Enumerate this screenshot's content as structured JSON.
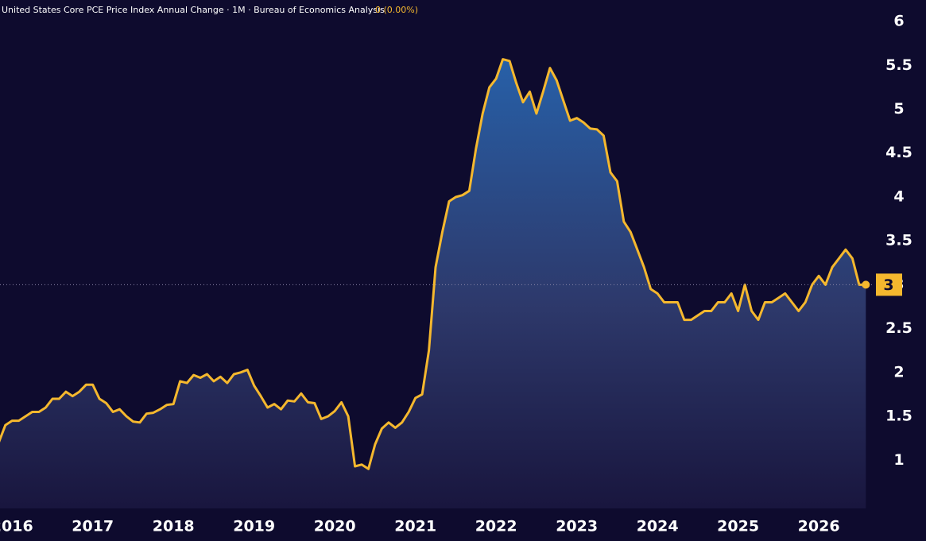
{
  "chart_data": {
    "type": "area",
    "title": "United States Core PCE Price Index Annual Change · 1M · Bureau of Economics Analysis",
    "change_label": "0 (0.00%)",
    "x": [
      2015.833,
      2015.917,
      2016,
      2016.083,
      2016.167,
      2016.25,
      2016.333,
      2016.417,
      2016.5,
      2016.583,
      2016.667,
      2016.75,
      2016.833,
      2016.917,
      2017,
      2017.083,
      2017.167,
      2017.25,
      2017.333,
      2017.417,
      2017.5,
      2017.583,
      2017.667,
      2017.75,
      2017.833,
      2017.917,
      2018,
      2018.083,
      2018.167,
      2018.25,
      2018.333,
      2018.417,
      2018.5,
      2018.583,
      2018.667,
      2018.75,
      2018.833,
      2018.917,
      2019,
      2019.083,
      2019.167,
      2019.25,
      2019.333,
      2019.417,
      2019.5,
      2019.583,
      2019.667,
      2019.75,
      2019.833,
      2019.917,
      2020,
      2020.083,
      2020.167,
      2020.25,
      2020.333,
      2020.417,
      2020.5,
      2020.583,
      2020.667,
      2020.75,
      2020.833,
      2020.917,
      2021,
      2021.083,
      2021.167,
      2021.25,
      2021.333,
      2021.417,
      2021.5,
      2021.583,
      2021.667,
      2021.75,
      2021.833,
      2021.917,
      2022,
      2022.083,
      2022.167,
      2022.25,
      2022.333,
      2022.417,
      2022.5,
      2022.583,
      2022.667,
      2022.75,
      2022.833,
      2022.917,
      2023,
      2023.083,
      2023.167,
      2023.25,
      2023.333,
      2023.417,
      2023.5,
      2023.583,
      2023.667,
      2023.75,
      2023.833,
      2023.917,
      2024,
      2024.083,
      2024.167,
      2024.25,
      2024.333,
      2024.417,
      2024.5,
      2024.583,
      2024.667,
      2024.75,
      2024.833,
      2024.917,
      2025,
      2025.083,
      2025.167,
      2025.25,
      2025.333,
      2025.417,
      2025.5,
      2025.583,
      2025.667,
      2025.75,
      2025.833,
      2025.917,
      2026,
      2026.083,
      2026.167,
      2026.25,
      2026.333,
      2026.417,
      2026.5,
      2026.583
    ],
    "series": [
      {
        "name": "United States Core PCE Price Index Annual Change",
        "color": "#f5b82e",
        "values": [
          1.2,
          1.4,
          1.45,
          1.45,
          1.5,
          1.55,
          1.55,
          1.6,
          1.7,
          1.7,
          1.78,
          1.73,
          1.78,
          1.86,
          1.86,
          1.7,
          1.65,
          1.55,
          1.58,
          1.5,
          1.44,
          1.43,
          1.53,
          1.54,
          1.58,
          1.63,
          1.64,
          1.9,
          1.88,
          1.97,
          1.94,
          1.98,
          1.9,
          1.95,
          1.88,
          1.98,
          2.0,
          2.03,
          1.85,
          1.73,
          1.6,
          1.64,
          1.58,
          1.68,
          1.67,
          1.76,
          1.66,
          1.65,
          1.47,
          1.5,
          1.56,
          1.66,
          1.5,
          0.93,
          0.95,
          0.9,
          1.18,
          1.36,
          1.43,
          1.37,
          1.43,
          1.55,
          1.71,
          1.75,
          2.25,
          3.2,
          3.6,
          3.95,
          4.0,
          4.02,
          4.07,
          4.55,
          4.95,
          5.25,
          5.35,
          5.57,
          5.55,
          5.3,
          5.08,
          5.2,
          4.95,
          5.2,
          5.47,
          5.33,
          5.1,
          4.87,
          4.9,
          4.85,
          4.78,
          4.77,
          4.7,
          4.28,
          4.18,
          3.72,
          3.6,
          3.4,
          3.2,
          2.95,
          2.9,
          2.8,
          2.8,
          2.8,
          2.6,
          2.6,
          2.65,
          2.7,
          2.7,
          2.8,
          2.8,
          2.9,
          2.7,
          3.0,
          2.7,
          2.6,
          2.8,
          2.8,
          2.85,
          2.9,
          2.8,
          2.7,
          2.8,
          3.0,
          3.1,
          3.0,
          3.2,
          3.3,
          3.4,
          3.3,
          3.0,
          3.0
        ]
      }
    ],
    "xlim": [
      2015.85,
      2026.59
    ],
    "xticks": [
      2016,
      2017,
      2018,
      2019,
      2020,
      2021,
      2022,
      2023,
      2024,
      2025,
      2026
    ],
    "ylim": [
      0.45,
      6.2
    ],
    "yticks": [
      1,
      1.5,
      2,
      2.5,
      3,
      3.5,
      4,
      4.5,
      5,
      5.5,
      6
    ],
    "grid": false
  }
}
